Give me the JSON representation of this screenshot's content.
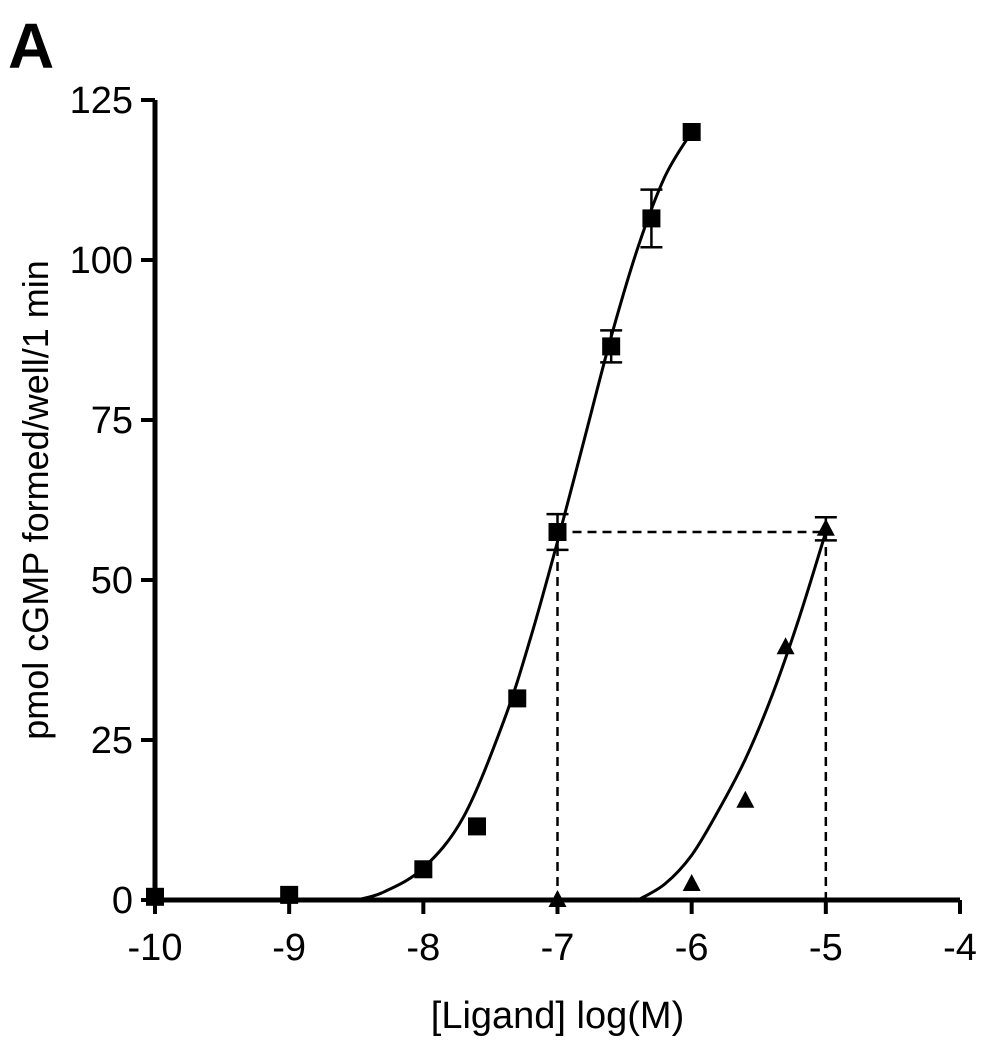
{
  "panel_label": "A",
  "chart_data": {
    "type": "scatter",
    "xlabel": "[Ligand] log(M)",
    "ylabel": "pmol cGMP formed/well/1 min",
    "xlim": [
      -10,
      -4
    ],
    "ylim": [
      0,
      125
    ],
    "xticks": [
      "-10",
      "-9",
      "-8",
      "-7",
      "-6",
      "-5",
      "-4"
    ],
    "yticks": [
      "0",
      "25",
      "50",
      "75",
      "100",
      "125"
    ],
    "grid": false,
    "series": [
      {
        "marker": "square",
        "points": [
          {
            "x": -10,
            "y": 0.5
          },
          {
            "x": -9,
            "y": 0.8
          },
          {
            "x": -8,
            "y": 4.8
          },
          {
            "x": -7.6,
            "y": 11.5
          },
          {
            "x": -7.3,
            "y": 31.5
          },
          {
            "x": -7,
            "y": 57.5,
            "err": 2.8
          },
          {
            "x": -6.6,
            "y": 86.5,
            "err": 2.5
          },
          {
            "x": -6.3,
            "y": 106.5,
            "err": 4.5
          },
          {
            "x": -6,
            "y": 120
          }
        ],
        "fit": [
          {
            "x": -8.5,
            "y": 0
          },
          {
            "x": -8.3,
            "y": 1.2
          },
          {
            "x": -8.0,
            "y": 5
          },
          {
            "x": -7.7,
            "y": 13
          },
          {
            "x": -7.4,
            "y": 28
          },
          {
            "x": -7.2,
            "y": 41
          },
          {
            "x": -7.0,
            "y": 56
          },
          {
            "x": -6.8,
            "y": 72
          },
          {
            "x": -6.6,
            "y": 88
          },
          {
            "x": -6.4,
            "y": 102
          },
          {
            "x": -6.2,
            "y": 113
          },
          {
            "x": -6.0,
            "y": 120
          }
        ]
      },
      {
        "marker": "triangle",
        "points": [
          {
            "x": -7,
            "y": 0
          },
          {
            "x": -6,
            "y": 2.5
          },
          {
            "x": -5.6,
            "y": 15.5
          },
          {
            "x": -5.3,
            "y": 39.5
          },
          {
            "x": -5,
            "y": 58,
            "err": 1.8
          }
        ],
        "fit": [
          {
            "x": -6.4,
            "y": 0
          },
          {
            "x": -6.2,
            "y": 2.5
          },
          {
            "x": -6.0,
            "y": 7
          },
          {
            "x": -5.8,
            "y": 14
          },
          {
            "x": -5.6,
            "y": 22
          },
          {
            "x": -5.4,
            "y": 32
          },
          {
            "x": -5.2,
            "y": 44
          },
          {
            "x": -5.0,
            "y": 57.5
          }
        ]
      }
    ],
    "reference_lines": {
      "y": 57.5,
      "x_start": -7,
      "x_end": -5
    }
  }
}
